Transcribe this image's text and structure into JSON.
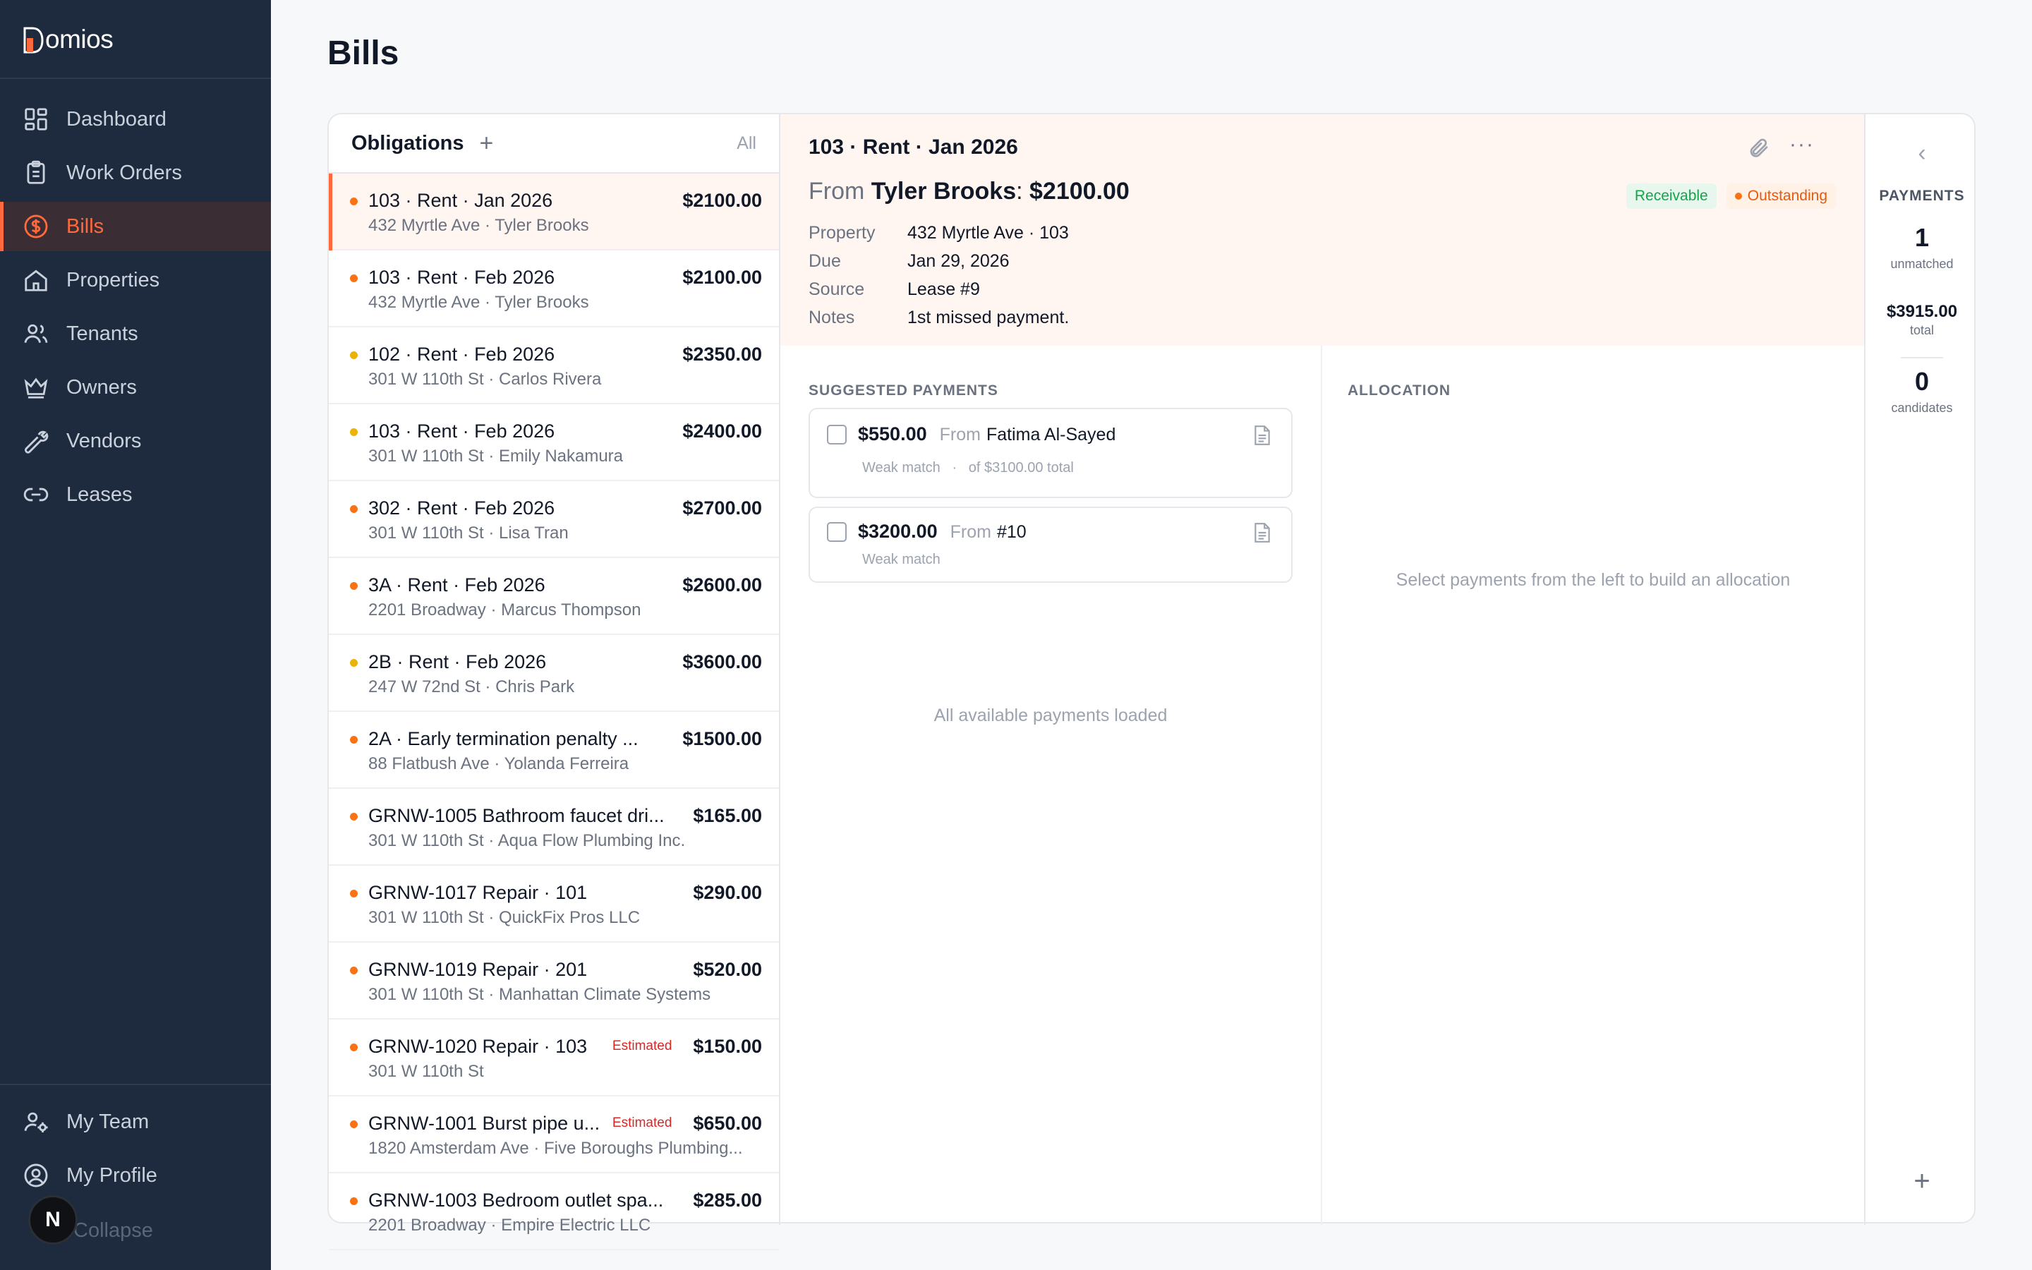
{
  "app": {
    "brand": "Domios",
    "brand_letter": "D",
    "brand_rest": "omios"
  },
  "sidebar": {
    "items": [
      {
        "label": "Dashboard",
        "icon": "dashboard-icon"
      },
      {
        "label": "Work Orders",
        "icon": "clipboard-icon"
      },
      {
        "label": "Bills",
        "icon": "dollar-circle-icon",
        "active": true
      },
      {
        "label": "Properties",
        "icon": "home-icon"
      },
      {
        "label": "Tenants",
        "icon": "users-icon"
      },
      {
        "label": "Owners",
        "icon": "crown-icon"
      },
      {
        "label": "Vendors",
        "icon": "wrench-icon"
      },
      {
        "label": "Leases",
        "icon": "link-icon"
      }
    ],
    "bottom": [
      {
        "label": "My Team",
        "icon": "user-gear-icon"
      },
      {
        "label": "My Profile",
        "icon": "user-circle-icon"
      }
    ],
    "collapse_label": "Collapse",
    "avatar_initial": "N"
  },
  "page": {
    "title": "Bills"
  },
  "obligations": {
    "title": "Obligations",
    "add_label": "+",
    "filter_label": "All",
    "rows": [
      {
        "title": "103 · Rent · Jan 2026",
        "amount": "$2100.00",
        "sub": "432 Myrtle Ave · Tyler Brooks",
        "dot": "orange",
        "badge": ""
      },
      {
        "title": "103 · Rent · Feb 2026",
        "amount": "$2100.00",
        "sub": "432 Myrtle Ave · Tyler Brooks",
        "dot": "orange",
        "badge": ""
      },
      {
        "title": "102 · Rent · Feb 2026",
        "amount": "$2350.00",
        "sub": "301 W 110th St · Carlos Rivera",
        "dot": "yellow",
        "badge": ""
      },
      {
        "title": "103 · Rent · Feb 2026",
        "amount": "$2400.00",
        "sub": "301 W 110th St · Emily Nakamura",
        "dot": "yellow",
        "badge": ""
      },
      {
        "title": "302 · Rent · Feb 2026",
        "amount": "$2700.00",
        "sub": "301 W 110th St · Lisa Tran",
        "dot": "orange",
        "badge": ""
      },
      {
        "title": "3A · Rent · Feb 2026",
        "amount": "$2600.00",
        "sub": "2201 Broadway · Marcus Thompson",
        "dot": "orange",
        "badge": ""
      },
      {
        "title": "2B · Rent · Feb 2026",
        "amount": "$3600.00",
        "sub": "247 W 72nd St · Chris Park",
        "dot": "yellow",
        "badge": ""
      },
      {
        "title": "2A · Early termination penalty ...",
        "amount": "$1500.00",
        "sub": "88 Flatbush Ave · Yolanda Ferreira",
        "dot": "orange",
        "badge": ""
      },
      {
        "title": "GRNW-1005 Bathroom faucet dri...",
        "amount": "$165.00",
        "sub": "301 W 110th St · Aqua Flow Plumbing Inc.",
        "dot": "orange",
        "badge": ""
      },
      {
        "title": "GRNW-1017 Repair · 101",
        "amount": "$290.00",
        "sub": "301 W 110th St · QuickFix Pros LLC",
        "dot": "orange",
        "badge": ""
      },
      {
        "title": "GRNW-1019 Repair · 201",
        "amount": "$520.00",
        "sub": "301 W 110th St · Manhattan Climate Systems",
        "dot": "orange",
        "badge": ""
      },
      {
        "title": "GRNW-1020 Repair · 103",
        "amount": "$150.00",
        "sub": "301 W 110th St",
        "dot": "orange",
        "badge": "Estimated"
      },
      {
        "title": "GRNW-1001 Burst pipe u...",
        "amount": "$650.00",
        "sub": "1820 Amsterdam Ave · Five Boroughs Plumbing...",
        "dot": "orange",
        "badge": "Estimated"
      },
      {
        "title": "GRNW-1003 Bedroom outlet spa...",
        "amount": "$285.00",
        "sub": "2201 Broadway · Empire Electric LLC",
        "dot": "orange",
        "badge": ""
      }
    ]
  },
  "detail": {
    "title": "103 · Rent · Jan 2026",
    "from_label": "From",
    "from_name": "Tyler Brooks",
    "amount": "$2100.00",
    "badges": {
      "receivable": "Receivable",
      "outstanding": "Outstanding"
    },
    "fields": [
      {
        "key": "Property",
        "value": "432 Myrtle Ave · 103"
      },
      {
        "key": "Due",
        "value": "Jan 29, 2026"
      },
      {
        "key": "Source",
        "value": "Lease #9"
      },
      {
        "key": "Notes",
        "value": "1st missed payment."
      }
    ]
  },
  "suggested": {
    "label": "SUGGESTED PAYMENTS",
    "payments": [
      {
        "amount": "$550.00",
        "from_label": "From",
        "from": "Fatima Al-Sayed",
        "match": "Weak match",
        "sep": "·",
        "total": "of $3100.00 total"
      },
      {
        "amount": "$3200.00",
        "from_label": "From",
        "from": "#10",
        "match": "Weak match"
      }
    ],
    "footer": "All available payments loaded"
  },
  "allocation": {
    "label": "ALLOCATION",
    "empty": "Select payments from the left to build an allocation"
  },
  "payments_rail": {
    "title": "PAYMENTS",
    "unmatched_count": "1",
    "unmatched_label": "unmatched",
    "total_value": "$3915.00",
    "total_label": "total",
    "candidates_count": "0",
    "candidates_label": "candidates",
    "chevron": "‹",
    "plus": "+"
  },
  "colors": {
    "accent": "#ff6a3d",
    "sidebar_bg": "#1e2a3d",
    "dot_orange": "#f97316",
    "dot_yellow": "#eab308",
    "receivable": "#16a34a",
    "outstanding": "#ea580c"
  }
}
